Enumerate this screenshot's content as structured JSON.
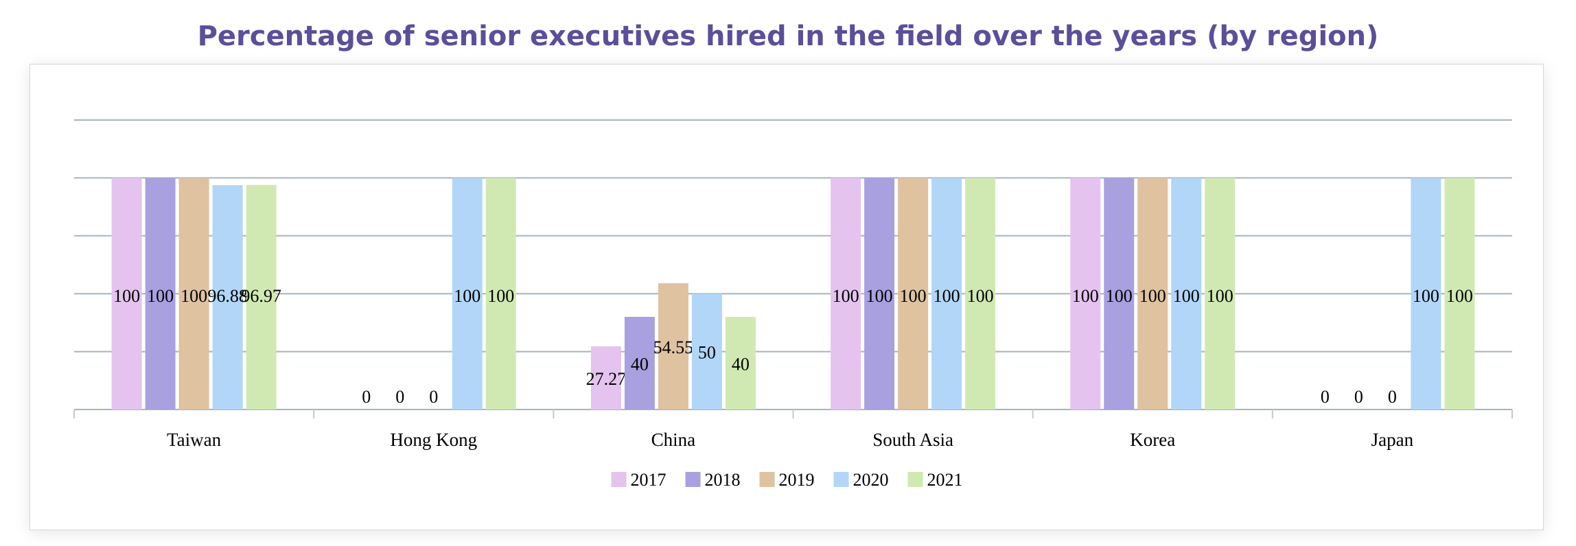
{
  "chart_data": {
    "type": "bar",
    "title": "Percentage of senior executives hired in the field over the years (by region)",
    "categories": [
      "Taiwan",
      "Hong Kong",
      "China",
      "South Asia",
      "Korea",
      "Japan"
    ],
    "series": [
      {
        "name": "2017",
        "color": "#e4c4ee",
        "values": [
          100,
          0,
          27.27,
          100,
          100,
          0
        ]
      },
      {
        "name": "2018",
        "color": "#a9a0e0",
        "values": [
          100,
          0,
          40,
          100,
          100,
          0
        ]
      },
      {
        "name": "2019",
        "color": "#dfc2a0",
        "values": [
          100,
          0,
          54.55,
          100,
          100,
          0
        ]
      },
      {
        "name": "2020",
        "color": "#b1d6f7",
        "values": [
          96.88,
          100,
          50,
          100,
          100,
          100
        ]
      },
      {
        "name": "2021",
        "color": "#d0e9b2",
        "values": [
          96.97,
          100,
          40,
          100,
          100,
          100
        ]
      }
    ],
    "ylim": [
      0,
      125
    ],
    "grid": true,
    "legend_position": "bottom-center",
    "xlabel": "",
    "ylabel": ""
  }
}
